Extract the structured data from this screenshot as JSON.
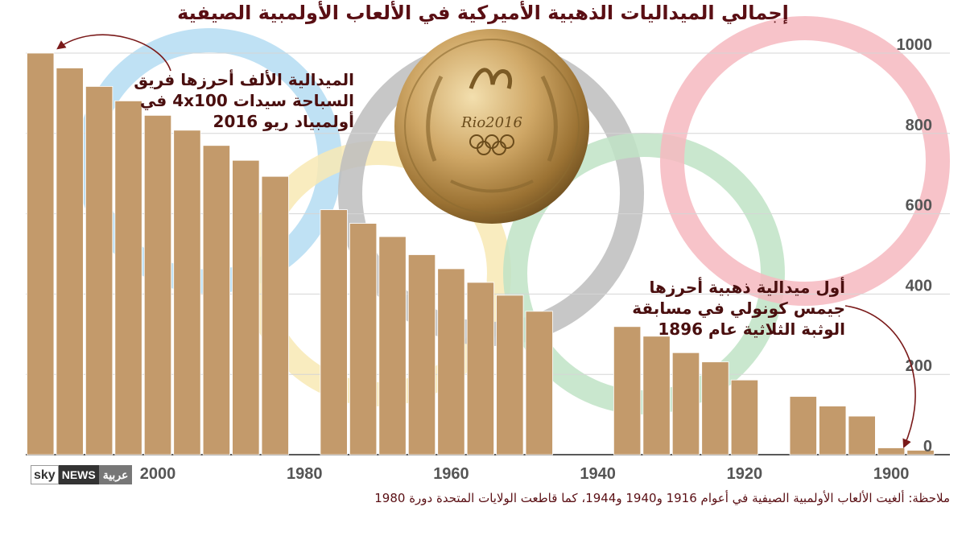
{
  "title": "إجمالي الميداليات الذهبية الأميركية في الألعاب الأولمبية الصيفية",
  "note": "ملاحظة: ألغيت الألعاب الأولمبية الصيفية في أعوام 1916 و1940 و1944، كما قاطعت الولايات المتحدة دورة 1980",
  "annotation_top": [
    "الميدالية الألف أحرزها فريق",
    "السباحة سيدات 4x100 في",
    "أولمبياد ريو 2016"
  ],
  "annotation_bottom": [
    "أول ميدالية ذهبية أحرزها",
    "جيمس كونولي في مسابقة",
    "الوثبة الثلاثية عام 1896"
  ],
  "logo": {
    "sky": "sky",
    "news": "NEWS",
    "arabic": "عربية"
  },
  "medal": {
    "emblem_text": "Rio2016"
  },
  "colors": {
    "bar": "#c39a6b",
    "title": "#5a0f14",
    "ring_blue": "#b4dcf2",
    "ring_black": "#bdbdbd",
    "ring_red": "#f6b8c0",
    "ring_yellow": "#f8e9b4",
    "ring_green": "#bfe3c6"
  },
  "chart_data": {
    "type": "bar",
    "xlabel": "",
    "ylabel": "",
    "x_axis_direction": "reversed",
    "x_ticks": [
      2000,
      1980,
      1960,
      1940,
      1920,
      1900
    ],
    "y_ticks": [
      0,
      200,
      400,
      600,
      800,
      1000
    ],
    "ylim": [
      0,
      1000
    ],
    "xlim": [
      1892,
      2018
    ],
    "grid": true,
    "y_axis_side": "right",
    "series": [
      {
        "x": [
          2016,
          2012,
          2008,
          2004,
          2000,
          1996,
          1992,
          1988,
          1984,
          1976,
          1972,
          1968,
          1964,
          1960,
          1956,
          1952,
          1948,
          1936,
          1932,
          1928,
          1924,
          1920,
          1912,
          1908,
          1904,
          1900,
          1896
        ],
        "values": [
          1000,
          963,
          917,
          881,
          845,
          808,
          770,
          733,
          693,
          610,
          576,
          543,
          498,
          463,
          429,
          397,
          357,
          319,
          295,
          254,
          231,
          186,
          145,
          121,
          96,
          17,
          11
        ]
      }
    ]
  }
}
